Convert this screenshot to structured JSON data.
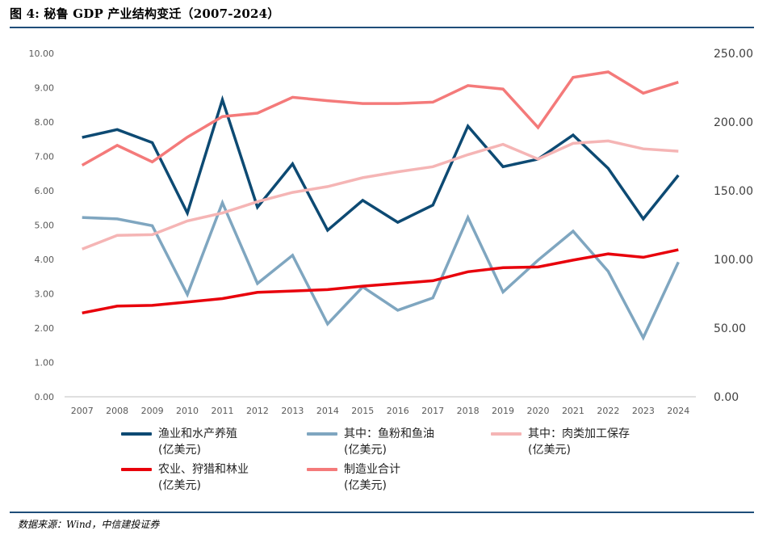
{
  "figure": {
    "title": "图 4: 秘鲁 GDP 产业结构变迁（2007-2024）",
    "source": "数据来源：Wind，中信建投证券"
  },
  "chart_data": {
    "type": "line",
    "categories": [
      "2007",
      "2008",
      "2009",
      "2010",
      "2011",
      "2012",
      "2013",
      "2014",
      "2015",
      "2016",
      "2017",
      "2018",
      "2019",
      "2020",
      "2021",
      "2022",
      "2023",
      "2024"
    ],
    "y_left": {
      "ylim": [
        0,
        10
      ],
      "ticks": [
        "0.00",
        "1.00",
        "2.00",
        "3.00",
        "4.00",
        "5.00",
        "6.00",
        "7.00",
        "8.00",
        "9.00",
        "10.00"
      ]
    },
    "y_right": {
      "ylim": [
        0,
        250
      ],
      "ticks": [
        "0.00",
        "50.00",
        "100.00",
        "150.00",
        "200.00",
        "250.00"
      ]
    },
    "grid": false,
    "legend_position": "bottom",
    "series": [
      {
        "name": "渔业和水产养殖",
        "unit": "(亿美元)",
        "axis": "left",
        "color": "#0d4a73",
        "values": [
          7.55,
          7.78,
          7.4,
          5.35,
          8.65,
          5.52,
          6.78,
          4.85,
          5.72,
          5.08,
          5.58,
          7.88,
          6.7,
          6.92,
          7.62,
          6.65,
          5.18,
          6.45
        ]
      },
      {
        "name": "其中：鱼粉和鱼油",
        "unit": "(亿美元)",
        "axis": "left",
        "color": "#7fa6c0",
        "values": [
          5.22,
          5.18,
          4.98,
          2.98,
          5.65,
          3.3,
          4.12,
          2.12,
          3.2,
          2.52,
          2.88,
          5.22,
          3.05,
          3.98,
          4.82,
          3.65,
          1.72,
          3.92
        ]
      },
      {
        "name": "其中：肉类加工保存",
        "unit": "(亿美元)",
        "axis": "left",
        "color": "#f5b5b5",
        "values": [
          4.3,
          4.7,
          4.72,
          5.12,
          5.35,
          5.68,
          5.95,
          6.12,
          6.38,
          6.55,
          6.7,
          7.05,
          7.35,
          6.92,
          7.38,
          7.45,
          7.22,
          7.15
        ]
      },
      {
        "name": "农业、狩猎和林业",
        "unit": "(亿美元)",
        "axis": "right",
        "color": "#e8000b",
        "values": [
          61,
          66,
          66.5,
          69,
          71.5,
          76,
          77,
          78,
          80.5,
          82.5,
          84.5,
          91,
          94,
          94.5,
          99.5,
          104,
          101.5,
          107
        ]
      },
      {
        "name": "制造业合计",
        "unit": "(亿美元)",
        "axis": "right",
        "color": "#f47a7a",
        "values": [
          168.5,
          183,
          171,
          189,
          204,
          206.5,
          218,
          215.5,
          213.5,
          213.5,
          214.5,
          226.5,
          224,
          196,
          232.5,
          236.5,
          221,
          229
        ]
      }
    ]
  }
}
